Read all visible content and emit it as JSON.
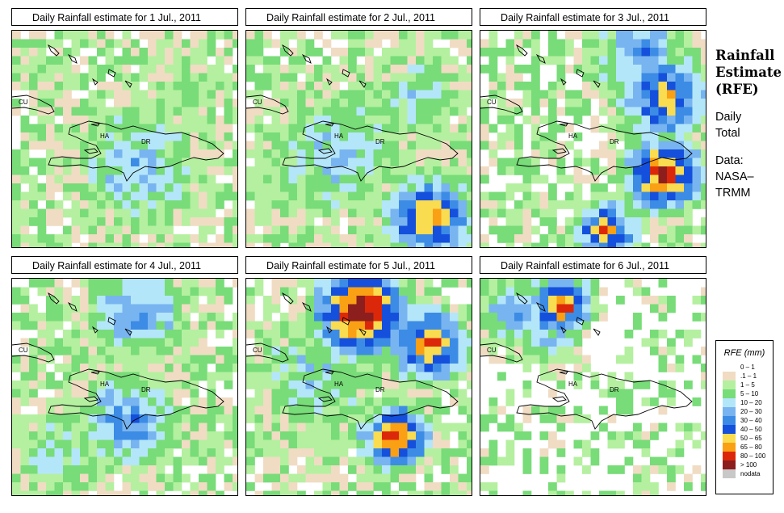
{
  "panels": [
    {
      "title": "Daily Rainfall estimate for  1 Jul., 2011",
      "day": 1
    },
    {
      "title": "Daily Rainfall estimate for  2 Jul., 2011",
      "day": 2
    },
    {
      "title": "Daily Rainfall estimate for  3 Jul., 2011",
      "day": 3
    },
    {
      "title": "Daily Rainfall estimate for  4 Jul., 2011",
      "day": 4
    },
    {
      "title": "Daily Rainfall estimate for  5 Jul., 2011",
      "day": 5
    },
    {
      "title": "Daily Rainfall estimate for  6 Jul., 2011",
      "day": 6
    }
  ],
  "map_labels": {
    "cu": "CU",
    "ha": "HA",
    "dr": "DR"
  },
  "side": {
    "title_line1": "Rainfall",
    "title_line2": "Estimate",
    "title_line3": "(RFE)",
    "daily_line1": "Daily",
    "daily_line2": "Total",
    "data_line1": "Data:",
    "data_line2": "NASA–",
    "data_line3": "TRMM"
  },
  "legend": {
    "title": "RFE (mm)",
    "classes": [
      {
        "label": "0 – 1",
        "color": "#ffffff"
      },
      {
        "label": ".1 – 1",
        "color": "#f0dcc3"
      },
      {
        "label": "1 – 5",
        "color": "#b4f0a0"
      },
      {
        "label": "5 – 10",
        "color": "#78dc78"
      },
      {
        "label": "10 – 20",
        "color": "#b4e6fa"
      },
      {
        "label": "20 – 30",
        "color": "#78b4f0"
      },
      {
        "label": "30 – 40",
        "color": "#3c8ce6"
      },
      {
        "label": "40 – 50",
        "color": "#1450dc"
      },
      {
        "label": "50 – 65",
        "color": "#fadc50"
      },
      {
        "label": "65 – 80",
        "color": "#faa014"
      },
      {
        "label": "80 – 100",
        "color": "#dc280a"
      },
      {
        "label": "> 100",
        "color": "#8c1e1e"
      },
      {
        "label": "nodata",
        "color": "#c8c8c8"
      }
    ]
  }
}
